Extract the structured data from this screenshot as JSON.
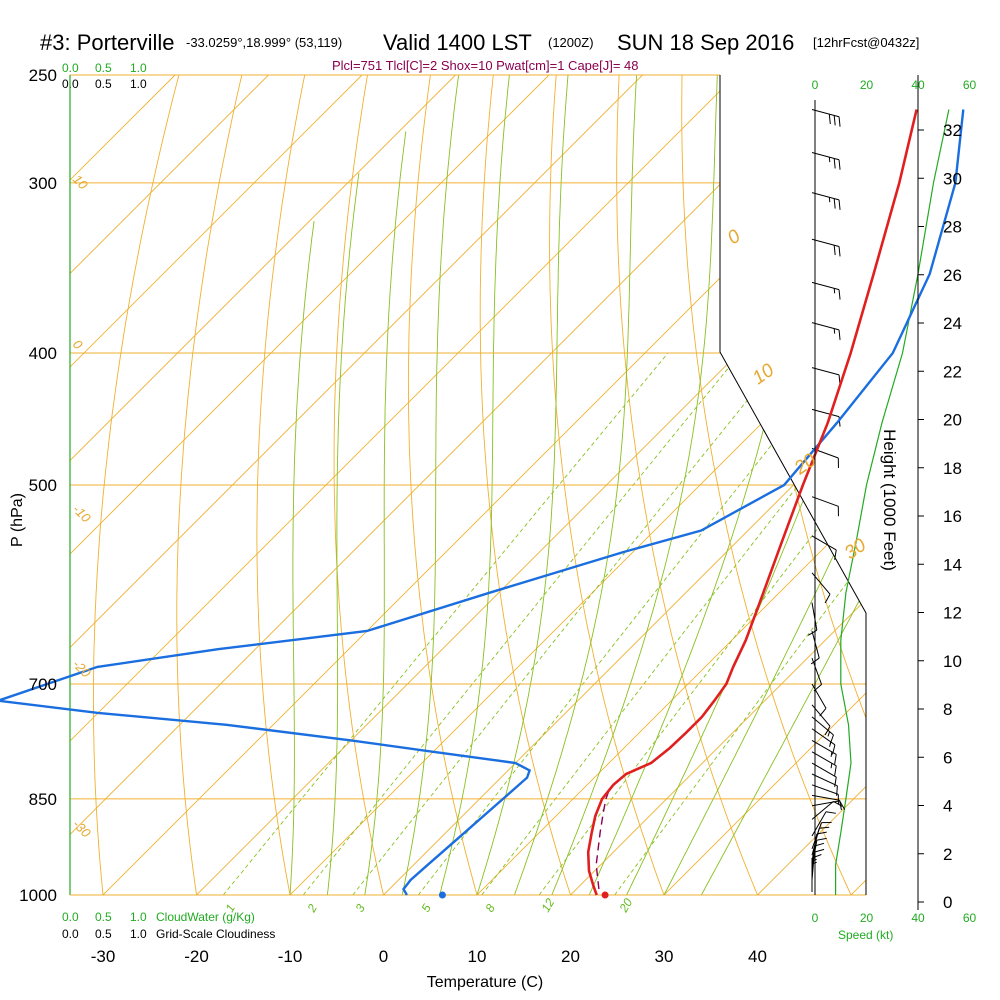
{
  "header": {
    "station": "#3: Porterville",
    "coords": "-33.0259°,18.999° (53,119)",
    "valid": "Valid 1400 LST",
    "utc": "(1200Z)",
    "date": "SUN 18 Sep 2016",
    "forecast": "[12hrFcst@0432z]"
  },
  "indices": "Plcl=751 Tlcl[C]=2 Shox=10 Pwat[cm]=1 Cape[J]= 48",
  "chart_data": {
    "type": "skew-t",
    "xlabel": "Temperature (C)",
    "ylabel": "P (hPa)",
    "y2label": "Height (1000 Feet)",
    "x_ticks": [
      "-30",
      "-20",
      "-10",
      "0",
      "10",
      "20",
      "30",
      "40"
    ],
    "p_ticks": [
      "250",
      "300",
      "400",
      "500",
      "700",
      "850",
      "1000"
    ],
    "height_ticks": [
      "0",
      "2",
      "4",
      "6",
      "8",
      "10",
      "12",
      "14",
      "16",
      "18",
      "20",
      "22",
      "24",
      "26",
      "28",
      "30",
      "32"
    ],
    "isotherm_labels": [
      "10",
      "0",
      "-10",
      "-20",
      "-30"
    ],
    "theta_labels": [
      "0",
      "10",
      "20",
      "30"
    ],
    "mixing_ratio_labels": [
      "1",
      "2",
      "3",
      "5",
      "8",
      "12",
      "20"
    ],
    "temperature": {
      "name": "Temperature",
      "color": "#e02020",
      "points": [
        [
          1000,
          22.8
        ],
        [
          985,
          21.5
        ],
        [
          960,
          19.4
        ],
        [
          930,
          17.3
        ],
        [
          900,
          15.6
        ],
        [
          875,
          14.2
        ],
        [
          850,
          13.1
        ],
        [
          830,
          12.8
        ],
        [
          815,
          13.0
        ],
        [
          800,
          14.5
        ],
        [
          780,
          14.9
        ],
        [
          760,
          15.0
        ],
        [
          740,
          15.0
        ],
        [
          720,
          14.6
        ],
        [
          700,
          14.1
        ],
        [
          680,
          13.0
        ],
        [
          650,
          11.5
        ],
        [
          600,
          8.3
        ],
        [
          550,
          4.8
        ],
        [
          500,
          1.0
        ],
        [
          450,
          -3.0
        ],
        [
          400,
          -8.0
        ],
        [
          350,
          -14.0
        ],
        [
          300,
          -21.0
        ],
        [
          265,
          -27.0
        ]
      ]
    },
    "dewpoint": {
      "name": "Dewpoint",
      "color": "#1a6ee0",
      "points": [
        [
          1000,
          2.5
        ],
        [
          990,
          1.5
        ],
        [
          975,
          1.3
        ],
        [
          950,
          1.5
        ],
        [
          900,
          2.0
        ],
        [
          850,
          2.5
        ],
        [
          820,
          2.8
        ],
        [
          810,
          2.3
        ],
        [
          800,
          0.0
        ],
        [
          785,
          -10.0
        ],
        [
          770,
          -20.0
        ],
        [
          750,
          -35.0
        ],
        [
          735,
          -50.0
        ],
        [
          720,
          -62.0
        ],
        [
          680,
          -55.0
        ],
        [
          660,
          -44.0
        ],
        [
          640,
          -30.0
        ],
        [
          600,
          -21.0
        ],
        [
          560,
          -11.0
        ],
        [
          540,
          -5.0
        ],
        [
          500,
          -1.0
        ],
        [
          450,
          -2.0
        ],
        [
          400,
          -3.5
        ],
        [
          350,
          -8.0
        ],
        [
          300,
          -15.0
        ],
        [
          265,
          -22.0
        ]
      ]
    },
    "parcel": {
      "name": "Parcel",
      "color": "#8b0050",
      "points": [
        [
          990,
          22.4
        ],
        [
          950,
          19.5
        ],
        [
          900,
          16.5
        ],
        [
          870,
          14.7
        ],
        [
          850,
          13.5
        ],
        [
          835,
          12.8
        ]
      ]
    },
    "surface_temperature": 23.7,
    "surface_dewpoint": 6.3,
    "wind_speed_ticks": [
      "0",
      "20",
      "40",
      "60"
    ],
    "cloud_ticks": [
      "0.0",
      "0.5",
      "1.0"
    ],
    "speed_label": "Speed (kt)",
    "cloudwater_label": "CloudWater (g/Kg)",
    "cloudiness_label": "Grid-Scale Cloudiness",
    "wind_barbs_kt": [
      {
        "p": 995,
        "spd": 5,
        "dir": 180
      },
      {
        "p": 990,
        "spd": 5,
        "dir": 180
      },
      {
        "p": 985,
        "spd": 10,
        "dir": 180
      },
      {
        "p": 975,
        "spd": 10,
        "dir": 185
      },
      {
        "p": 965,
        "spd": 10,
        "dir": 185
      },
      {
        "p": 955,
        "spd": 10,
        "dir": 190
      },
      {
        "p": 945,
        "spd": 10,
        "dir": 190
      },
      {
        "p": 935,
        "spd": 10,
        "dir": 195
      },
      {
        "p": 925,
        "spd": 10,
        "dir": 200
      },
      {
        "p": 905,
        "spd": 10,
        "dir": 210
      },
      {
        "p": 880,
        "spd": 10,
        "dir": 230
      },
      {
        "p": 860,
        "spd": 10,
        "dir": 260
      },
      {
        "p": 845,
        "spd": 10,
        "dir": 280
      },
      {
        "p": 830,
        "spd": 10,
        "dir": 290
      },
      {
        "p": 815,
        "spd": 10,
        "dir": 295
      },
      {
        "p": 800,
        "spd": 10,
        "dir": 300
      },
      {
        "p": 785,
        "spd": 15,
        "dir": 300
      },
      {
        "p": 770,
        "spd": 15,
        "dir": 300
      },
      {
        "p": 755,
        "spd": 15,
        "dir": 305
      },
      {
        "p": 740,
        "spd": 15,
        "dir": 310
      },
      {
        "p": 725,
        "spd": 10,
        "dir": 320
      },
      {
        "p": 700,
        "spd": 10,
        "dir": 330
      },
      {
        "p": 670,
        "spd": 10,
        "dir": 340
      },
      {
        "p": 640,
        "spd": 10,
        "dir": 345
      },
      {
        "p": 610,
        "spd": 10,
        "dir": 350
      },
      {
        "p": 580,
        "spd": 10,
        "dir": 320
      },
      {
        "p": 545,
        "spd": 10,
        "dir": 300
      },
      {
        "p": 510,
        "spd": 10,
        "dir": 290
      },
      {
        "p": 470,
        "spd": 10,
        "dir": 290
      },
      {
        "p": 440,
        "spd": 10,
        "dir": 285
      },
      {
        "p": 410,
        "spd": 10,
        "dir": 285
      },
      {
        "p": 380,
        "spd": 15,
        "dir": 285
      },
      {
        "p": 355,
        "spd": 15,
        "dir": 285
      },
      {
        "p": 330,
        "spd": 20,
        "dir": 285
      },
      {
        "p": 305,
        "spd": 25,
        "dir": 285
      },
      {
        "p": 285,
        "spd": 25,
        "dir": 285
      },
      {
        "p": 265,
        "spd": 30,
        "dir": 285
      }
    ],
    "wind_speed_profile": [
      [
        1000,
        8
      ],
      [
        950,
        8
      ],
      [
        900,
        10
      ],
      [
        850,
        12
      ],
      [
        800,
        14
      ],
      [
        750,
        13
      ],
      [
        700,
        10
      ],
      [
        650,
        10
      ],
      [
        600,
        12
      ],
      [
        550,
        16
      ],
      [
        500,
        20
      ],
      [
        450,
        26
      ],
      [
        400,
        34
      ],
      [
        350,
        40
      ],
      [
        300,
        46
      ],
      [
        265,
        52
      ]
    ]
  }
}
